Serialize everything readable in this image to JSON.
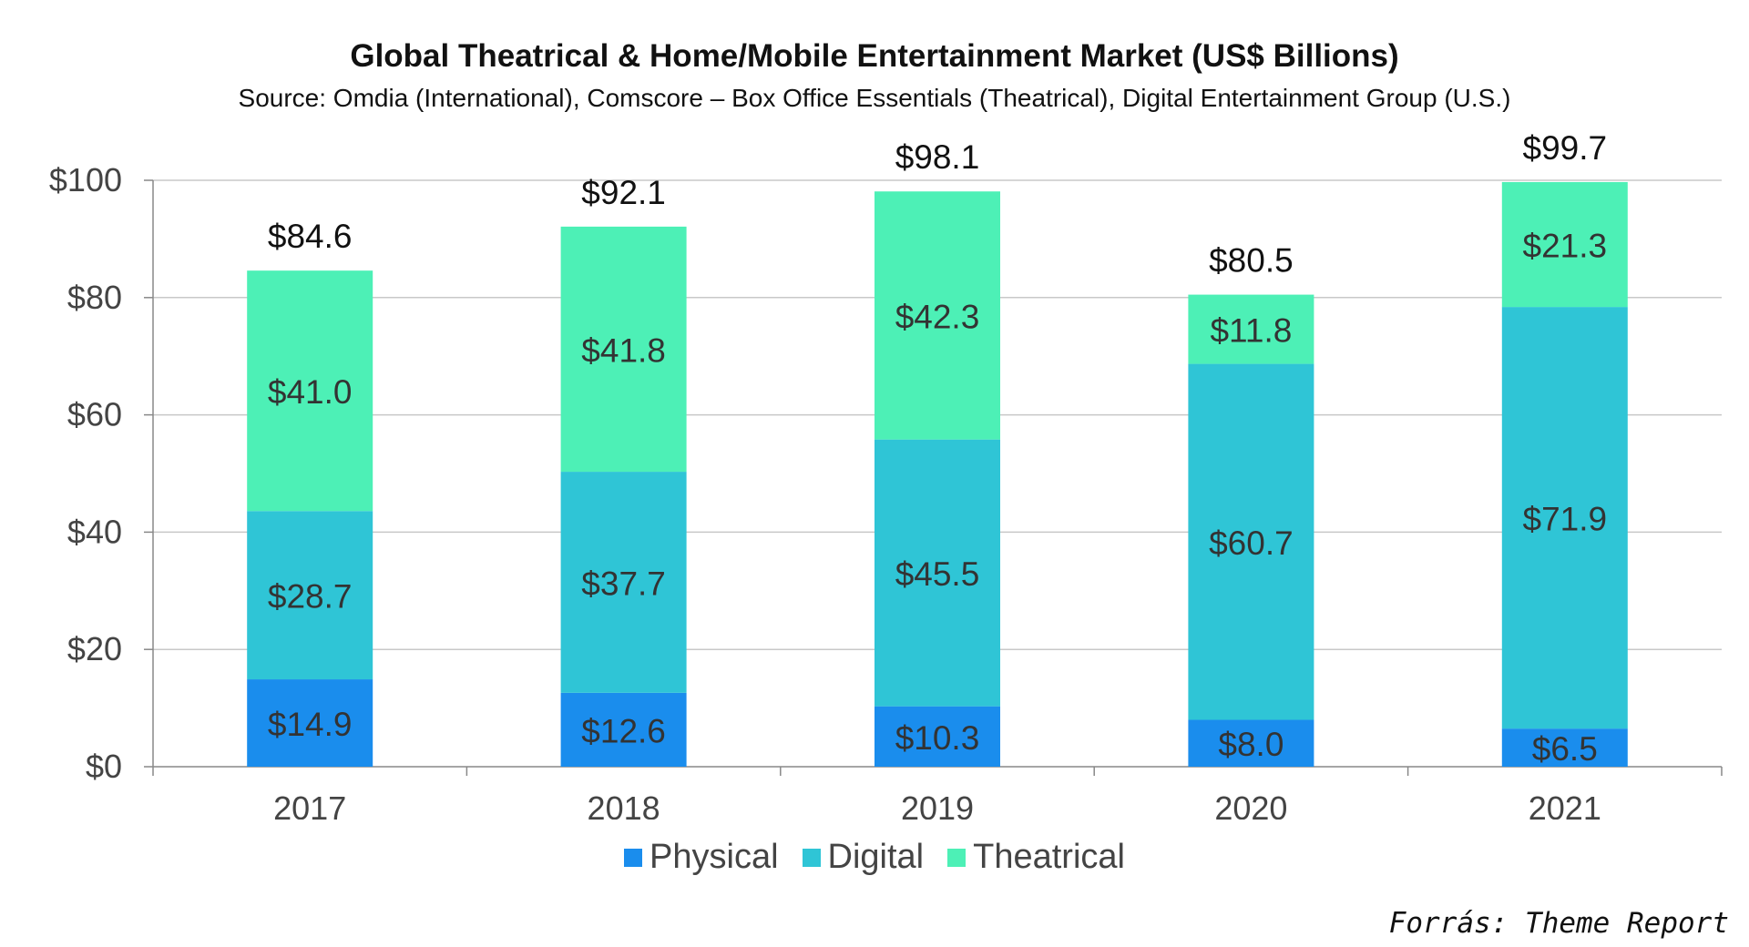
{
  "title": "Global Theatrical & Home/Mobile Entertainment Market (US$ Billions)",
  "subtitle": "Source: Omdia (International), Comscore – Box Office Essentials (Theatrical), Digital Entertainment Group (U.S.)",
  "footer": "Forrás: Theme Report",
  "chart_data": {
    "type": "bar",
    "stacked": true,
    "categories": [
      "2017",
      "2018",
      "2019",
      "2020",
      "2021"
    ],
    "series": [
      {
        "name": "Physical",
        "color": "#1a8ded",
        "values": [
          14.9,
          12.6,
          10.3,
          8.0,
          6.5
        ],
        "labels": [
          "$14.9",
          "$12.6",
          "$10.3",
          "$8.0",
          "$6.5"
        ]
      },
      {
        "name": "Digital",
        "color": "#2fc5d6",
        "values": [
          28.7,
          37.7,
          45.5,
          60.7,
          71.9
        ],
        "labels": [
          "$28.7",
          "$37.7",
          "$45.5",
          "$60.7",
          "$71.9"
        ]
      },
      {
        "name": "Theatrical",
        "color": "#4df0b6",
        "values": [
          41.0,
          41.8,
          42.3,
          11.8,
          21.3
        ],
        "labels": [
          "$41.0",
          "$41.8",
          "$42.3",
          "$11.8",
          "$21.3"
        ]
      }
    ],
    "totals": [
      84.6,
      92.1,
      98.1,
      80.5,
      99.7
    ],
    "total_labels": [
      "$84.6",
      "$92.1",
      "$98.1",
      "$80.5",
      "$99.7"
    ],
    "ylim": [
      0,
      100
    ],
    "yticks": [
      0,
      20,
      40,
      60,
      80,
      100
    ],
    "ytick_labels": [
      "$0",
      "$20",
      "$40",
      "$60",
      "$80",
      "$100"
    ],
    "grid": true,
    "legend_position": "bottom-center"
  }
}
